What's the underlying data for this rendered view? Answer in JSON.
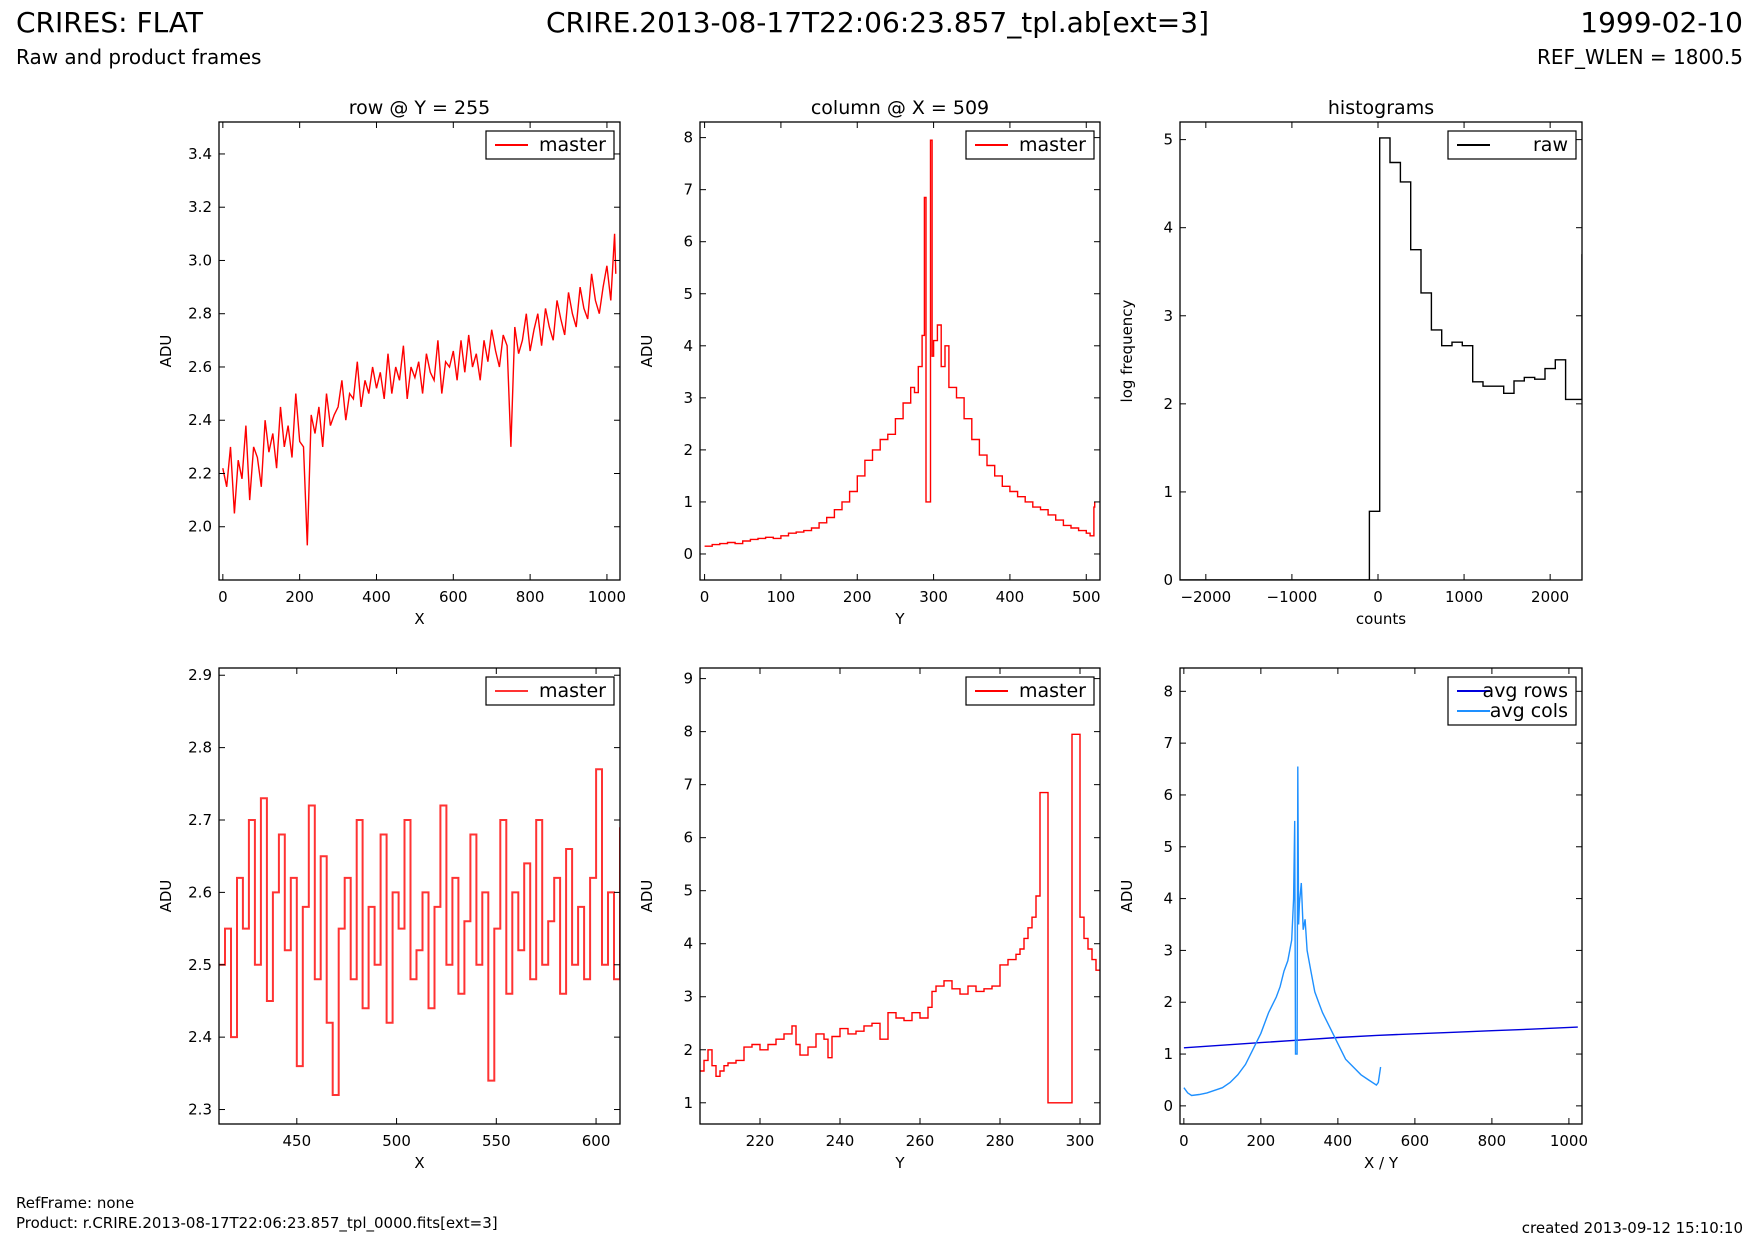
{
  "header": {
    "title": "CRIRES: FLAT",
    "subtitle": "Raw and product frames",
    "file": "CRIRE.2013-08-17T22:06:23.857_tpl.ab[ext=3]",
    "date": "1999-02-10",
    "ref_wlen": "REF_WLEN = 1800.5"
  },
  "footer": {
    "refframe": "RefFrame: none",
    "product": "Product: r.CRIRE.2013-08-17T22:06:23.857_tpl_0000.fits[ext=3]",
    "created": "created 2013-09-12 15:10:10"
  },
  "colors": {
    "red": "#ff0000",
    "black": "#000000",
    "blue": "#0000dd",
    "lightblue": "#1e90ff"
  },
  "chart_data": [
    {
      "type": "line",
      "title": "row @ Y = 255",
      "xlabel": "X",
      "ylabel": "ADU",
      "xlim": [
        -10,
        1034
      ],
      "ylim": [
        1.8,
        3.52
      ],
      "xticks": [
        0,
        200,
        400,
        600,
        800,
        1000
      ],
      "yticks": [
        2.0,
        2.2,
        2.4,
        2.6,
        2.8,
        3.0,
        3.2,
        3.4
      ],
      "ytick_labels": [
        "2.0",
        "2.2",
        "2.4",
        "2.6",
        "2.8",
        "3.0",
        "3.2",
        "3.4"
      ],
      "legend": "top-right",
      "series": [
        {
          "name": "master",
          "color": "#ff0000",
          "step": false,
          "x": [
            0,
            10,
            20,
            30,
            40,
            50,
            60,
            70,
            80,
            90,
            100,
            110,
            120,
            130,
            140,
            150,
            160,
            170,
            180,
            190,
            200,
            210,
            220,
            230,
            240,
            250,
            260,
            270,
            280,
            290,
            300,
            310,
            320,
            330,
            340,
            350,
            360,
            370,
            380,
            390,
            400,
            410,
            420,
            430,
            440,
            450,
            460,
            470,
            480,
            490,
            500,
            510,
            520,
            530,
            540,
            550,
            560,
            570,
            580,
            590,
            600,
            610,
            620,
            630,
            640,
            650,
            660,
            670,
            680,
            690,
            700,
            710,
            720,
            730,
            740,
            750,
            760,
            770,
            780,
            790,
            800,
            810,
            820,
            830,
            840,
            850,
            860,
            870,
            880,
            890,
            900,
            910,
            920,
            930,
            940,
            950,
            960,
            970,
            980,
            990,
            1000,
            1010,
            1020,
            1023
          ],
          "y": [
            2.22,
            2.15,
            2.3,
            2.05,
            2.25,
            2.18,
            2.38,
            2.1,
            2.3,
            2.26,
            2.15,
            2.4,
            2.28,
            2.35,
            2.22,
            2.45,
            2.3,
            2.38,
            2.26,
            2.5,
            2.32,
            2.3,
            1.93,
            2.42,
            2.35,
            2.45,
            2.3,
            2.5,
            2.38,
            2.42,
            2.45,
            2.55,
            2.4,
            2.5,
            2.48,
            2.62,
            2.45,
            2.55,
            2.5,
            2.6,
            2.52,
            2.58,
            2.48,
            2.65,
            2.5,
            2.6,
            2.55,
            2.68,
            2.48,
            2.6,
            2.56,
            2.62,
            2.5,
            2.65,
            2.58,
            2.55,
            2.7,
            2.5,
            2.62,
            2.6,
            2.66,
            2.55,
            2.7,
            2.58,
            2.72,
            2.6,
            2.65,
            2.55,
            2.7,
            2.62,
            2.74,
            2.66,
            2.6,
            2.72,
            2.68,
            2.3,
            2.75,
            2.65,
            2.7,
            2.8,
            2.66,
            2.74,
            2.8,
            2.68,
            2.82,
            2.75,
            2.7,
            2.85,
            2.78,
            2.72,
            2.88,
            2.8,
            2.75,
            2.9,
            2.82,
            2.78,
            2.95,
            2.85,
            2.8,
            2.9,
            2.98,
            2.85,
            3.1,
            2.95
          ]
        }
      ]
    },
    {
      "type": "line",
      "title": "column @ X = 509",
      "xlabel": "Y",
      "ylabel": "ADU",
      "xlim": [
        -6,
        518
      ],
      "ylim": [
        -0.5,
        8.3
      ],
      "xticks": [
        0,
        100,
        200,
        300,
        400,
        500
      ],
      "yticks": [
        0,
        1,
        2,
        3,
        4,
        5,
        6,
        7,
        8
      ],
      "legend": "top-right",
      "series": [
        {
          "name": "master",
          "color": "#ff0000",
          "step": true,
          "x": [
            0,
            10,
            20,
            30,
            40,
            50,
            60,
            70,
            80,
            90,
            100,
            110,
            120,
            130,
            140,
            150,
            160,
            170,
            180,
            190,
            200,
            210,
            220,
            230,
            240,
            250,
            260,
            270,
            275,
            280,
            285,
            288,
            290,
            292,
            294,
            296,
            298,
            300,
            305,
            310,
            315,
            320,
            330,
            340,
            350,
            360,
            370,
            380,
            390,
            400,
            410,
            420,
            430,
            440,
            450,
            460,
            470,
            480,
            490,
            500,
            505,
            510,
            511
          ],
          "y": [
            0.15,
            0.18,
            0.2,
            0.22,
            0.2,
            0.25,
            0.28,
            0.3,
            0.32,
            0.3,
            0.35,
            0.4,
            0.42,
            0.45,
            0.5,
            0.6,
            0.7,
            0.85,
            1.0,
            1.2,
            1.5,
            1.8,
            2.0,
            2.2,
            2.3,
            2.6,
            2.9,
            3.2,
            3.1,
            3.6,
            4.2,
            6.85,
            1.0,
            1.0,
            1.0,
            7.95,
            3.8,
            4.1,
            4.4,
            3.6,
            4.0,
            3.2,
            3.0,
            2.6,
            2.2,
            1.9,
            1.7,
            1.5,
            1.3,
            1.2,
            1.1,
            1.0,
            0.9,
            0.85,
            0.75,
            0.65,
            0.55,
            0.5,
            0.45,
            0.4,
            0.35,
            0.9,
            1.0
          ]
        }
      ]
    },
    {
      "type": "line",
      "title": "histograms",
      "xlabel": "counts",
      "ylabel": "log frequency",
      "xlim": [
        -2300,
        2370
      ],
      "ylim": [
        0,
        5.2
      ],
      "xticks": [
        -2000,
        -1000,
        0,
        1000,
        2000
      ],
      "xtick_labels": [
        "−2000",
        "−1000",
        "0",
        "1000",
        "2000"
      ],
      "yticks": [
        0,
        1,
        2,
        3,
        4,
        5
      ],
      "legend": "top-right",
      "series": [
        {
          "name": "raw",
          "color": "#000000",
          "step": true,
          "x": [
            -2300,
            -220,
            -100,
            20,
            140,
            260,
            380,
            500,
            620,
            740,
            860,
            980,
            1100,
            1220,
            1340,
            1460,
            1580,
            1700,
            1820,
            1940,
            2060,
            2180,
            2370
          ],
          "y": [
            0,
            0,
            0.78,
            5.02,
            4.74,
            4.52,
            3.75,
            3.26,
            2.84,
            2.66,
            2.7,
            2.66,
            2.25,
            2.2,
            2.2,
            2.12,
            2.26,
            2.3,
            2.28,
            2.4,
            2.5,
            2.05,
            3.7
          ]
        }
      ]
    },
    {
      "type": "line",
      "title": "",
      "xlabel": "X",
      "ylabel": "ADU",
      "xlim": [
        411,
        612
      ],
      "ylim": [
        2.28,
        2.91
      ],
      "xticks": [
        450,
        500,
        550,
        600
      ],
      "yticks": [
        2.3,
        2.4,
        2.5,
        2.6,
        2.7,
        2.8,
        2.9
      ],
      "ytick_labels": [
        "2.3",
        "2.4",
        "2.5",
        "2.6",
        "2.7",
        "2.8",
        "2.9"
      ],
      "legend": "top-right",
      "series": [
        {
          "name": "master",
          "color": "#ff3333",
          "step": true,
          "x": [
            411,
            414,
            417,
            420,
            423,
            426,
            429,
            432,
            435,
            438,
            441,
            444,
            447,
            450,
            453,
            456,
            459,
            462,
            465,
            468,
            471,
            474,
            477,
            480,
            483,
            486,
            489,
            492,
            495,
            498,
            501,
            504,
            507,
            510,
            513,
            516,
            519,
            522,
            525,
            528,
            531,
            534,
            537,
            540,
            543,
            546,
            549,
            552,
            555,
            558,
            561,
            564,
            567,
            570,
            573,
            576,
            579,
            582,
            585,
            588,
            591,
            594,
            597,
            600,
            603,
            606,
            609,
            612
          ],
          "y": [
            2.5,
            2.55,
            2.4,
            2.62,
            2.55,
            2.7,
            2.5,
            2.73,
            2.45,
            2.6,
            2.68,
            2.52,
            2.62,
            2.36,
            2.58,
            2.72,
            2.48,
            2.65,
            2.42,
            2.32,
            2.55,
            2.62,
            2.48,
            2.7,
            2.44,
            2.58,
            2.5,
            2.68,
            2.42,
            2.6,
            2.55,
            2.7,
            2.48,
            2.52,
            2.6,
            2.44,
            2.58,
            2.72,
            2.5,
            2.62,
            2.46,
            2.56,
            2.68,
            2.5,
            2.6,
            2.34,
            2.55,
            2.7,
            2.46,
            2.6,
            2.52,
            2.64,
            2.48,
            2.7,
            2.5,
            2.56,
            2.62,
            2.46,
            2.66,
            2.5,
            2.58,
            2.48,
            2.62,
            2.77,
            2.5,
            2.6,
            2.48,
            2.69
          ]
        }
      ]
    },
    {
      "type": "line",
      "title": "",
      "xlabel": "Y",
      "ylabel": "ADU",
      "xlim": [
        205,
        305
      ],
      "ylim": [
        0.6,
        9.2
      ],
      "xticks": [
        220,
        240,
        260,
        280,
        300
      ],
      "yticks": [
        1,
        2,
        3,
        4,
        5,
        6,
        7,
        8,
        9
      ],
      "legend": "top-right",
      "series": [
        {
          "name": "master",
          "color": "#ff0000",
          "step": true,
          "x": [
            205,
            206,
            207,
            208,
            209,
            210,
            211,
            212,
            214,
            216,
            218,
            220,
            222,
            224,
            226,
            228,
            229,
            230,
            232,
            234,
            236,
            237,
            238,
            240,
            242,
            244,
            246,
            248,
            250,
            252,
            254,
            256,
            258,
            260,
            262,
            263,
            264,
            266,
            268,
            270,
            272,
            274,
            276,
            278,
            280,
            282,
            284,
            285,
            286,
            287,
            288,
            289,
            290,
            292,
            294,
            296,
            298,
            300,
            301,
            302,
            303,
            304,
            305
          ],
          "y": [
            1.6,
            1.8,
            2.0,
            1.7,
            1.5,
            1.6,
            1.7,
            1.75,
            1.8,
            2.05,
            2.1,
            2.0,
            2.1,
            2.2,
            2.3,
            2.45,
            2.1,
            1.9,
            2.05,
            2.3,
            2.2,
            1.85,
            2.25,
            2.4,
            2.3,
            2.35,
            2.45,
            2.5,
            2.2,
            2.7,
            2.6,
            2.55,
            2.7,
            2.6,
            2.8,
            3.1,
            3.2,
            3.3,
            3.15,
            3.05,
            3.2,
            3.1,
            3.15,
            3.2,
            3.6,
            3.7,
            3.8,
            3.9,
            4.1,
            4.3,
            4.5,
            4.9,
            6.85,
            1.0,
            1.0,
            1.0,
            7.95,
            4.5,
            4.1,
            3.9,
            3.7,
            3.5,
            3.5
          ]
        }
      ]
    },
    {
      "type": "line",
      "title": "",
      "xlabel": "X / Y",
      "ylabel": "ADU",
      "xlim": [
        -10,
        1034
      ],
      "ylim": [
        -0.35,
        8.45
      ],
      "xticks": [
        0,
        200,
        400,
        600,
        800,
        1000
      ],
      "yticks": [
        0,
        1,
        2,
        3,
        4,
        5,
        6,
        7,
        8
      ],
      "legend": "top-right",
      "series": [
        {
          "name": "avg rows",
          "color": "#0000dd",
          "step": false,
          "x": [
            0,
            100,
            200,
            300,
            400,
            500,
            600,
            700,
            800,
            900,
            1023
          ],
          "y": [
            1.12,
            1.17,
            1.22,
            1.27,
            1.32,
            1.36,
            1.39,
            1.42,
            1.45,
            1.48,
            1.52
          ]
        },
        {
          "name": "avg cols",
          "color": "#1e90ff",
          "step": false,
          "x": [
            0,
            10,
            20,
            40,
            60,
            80,
            100,
            120,
            140,
            160,
            180,
            200,
            220,
            240,
            250,
            260,
            270,
            280,
            285,
            288,
            290,
            292,
            294,
            296,
            298,
            300,
            305,
            310,
            315,
            320,
            330,
            340,
            350,
            360,
            380,
            400,
            420,
            440,
            460,
            480,
            500,
            505,
            511
          ],
          "y": [
            0.35,
            0.25,
            0.2,
            0.22,
            0.25,
            0.3,
            0.35,
            0.45,
            0.6,
            0.8,
            1.1,
            1.4,
            1.8,
            2.1,
            2.3,
            2.6,
            2.8,
            3.2,
            4.0,
            5.5,
            1.0,
            1.0,
            1.0,
            6.55,
            3.5,
            3.9,
            4.3,
            3.4,
            3.6,
            3.0,
            2.6,
            2.2,
            2.0,
            1.8,
            1.5,
            1.2,
            0.9,
            0.75,
            0.6,
            0.5,
            0.4,
            0.45,
            0.75
          ]
        }
      ]
    }
  ]
}
